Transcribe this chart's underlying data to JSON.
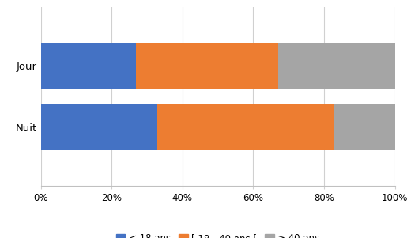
{
  "categories": [
    "Jour",
    "Nuit"
  ],
  "series": {
    "< 18 ans": [
      27,
      33
    ],
    "[ 18 - 40 ans [": [
      40,
      50
    ],
    "≥ 40 ans": [
      33,
      17
    ]
  },
  "colors": {
    "< 18 ans": "#4472C4",
    "[ 18 - 40 ans [": "#ED7D31",
    "≥ 40 ans": "#A5A5A5"
  },
  "xlim": [
    0,
    100
  ],
  "xticks": [
    0,
    20,
    40,
    60,
    80,
    100
  ],
  "xtick_labels": [
    "0%",
    "20%",
    "40%",
    "60%",
    "80%",
    "100%"
  ],
  "background_color": "#ffffff",
  "bar_height": 0.75,
  "legend_fontsize": 8.5,
  "tick_fontsize": 8.5,
  "ytick_fontsize": 9.5,
  "grid_color": "#d0d0d0",
  "border_color": "#c0c0c0"
}
